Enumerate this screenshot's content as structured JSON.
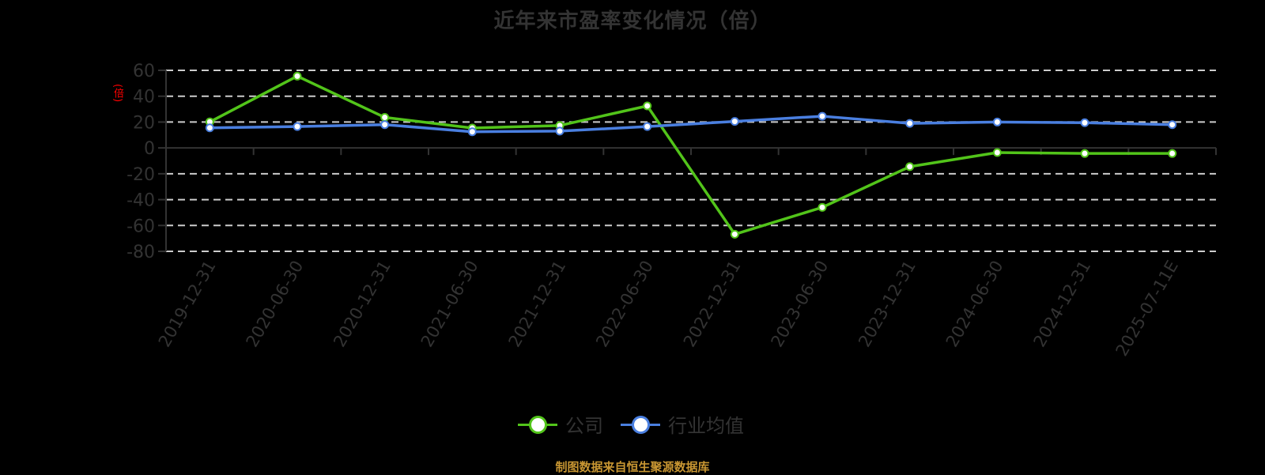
{
  "title": "近年来市盈率变化情况（倍）",
  "y_axis_unit_label": "(倍)",
  "legend": [
    {
      "label": "公司",
      "color": "#52c41a"
    },
    {
      "label": "行业均值",
      "color": "#4a7fe0"
    }
  ],
  "source": "制图数据来自恒生聚源数据库",
  "colors": {
    "company": "#52c41a",
    "industry": "#4a7fe0",
    "grid": "#cccccc",
    "axis": "#333333",
    "text": "#333333",
    "source": "#c89632"
  },
  "chart_data": {
    "type": "line",
    "title": "近年来市盈率变化情况（倍）",
    "xlabel": "",
    "ylabel": "(倍)",
    "ylim": [
      -80,
      60
    ],
    "yticks": [
      60,
      40,
      20,
      0,
      -20,
      -40,
      -60,
      -80
    ],
    "grid": true,
    "legend_position": "bottom",
    "categories": [
      "2019-12-31",
      "2020-06-30",
      "2020-12-31",
      "2021-06-30",
      "2021-12-31",
      "2022-06-30",
      "2022-12-31",
      "2023-06-30",
      "2023-12-31",
      "2024-06-30",
      "2024-12-31",
      "2025-07-11E"
    ],
    "series": [
      {
        "name": "公司",
        "values": [
          20.1,
          55.5,
          23.6,
          15.4,
          17.3,
          32.5,
          -66.8,
          -46.0,
          -14.5,
          -3.6,
          -4.3,
          -4.3
        ]
      },
      {
        "name": "行业均值",
        "values": [
          15.5,
          16.5,
          18.0,
          12.5,
          13.0,
          16.5,
          20.5,
          24.5,
          19.0,
          20.0,
          19.5,
          18.0
        ]
      }
    ]
  }
}
